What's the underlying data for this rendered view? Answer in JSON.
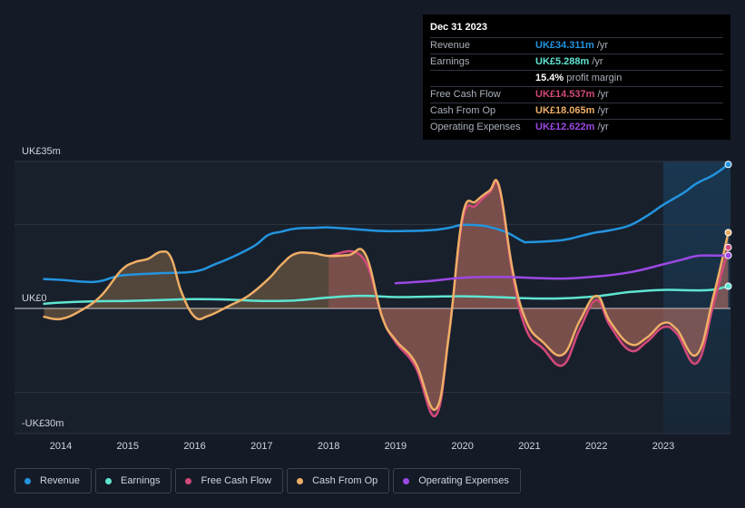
{
  "chart_data": {
    "type": "line",
    "title": "",
    "y_unit_label_top": "UK£35m",
    "y_unit_label_zero": "UK£0",
    "y_unit_label_bottom": "-UK£30m",
    "ylim": [
      -30,
      35
    ],
    "xlim": [
      2013.7,
      2023.97
    ],
    "x_ticks": [
      "2014",
      "2015",
      "2016",
      "2017",
      "2018",
      "2019",
      "2020",
      "2021",
      "2022",
      "2023"
    ],
    "highlight_start": 2023.0,
    "series": [
      {
        "name": "Revenue",
        "color": "#2394df",
        "fill": false,
        "points": [
          [
            2013.75,
            7.0
          ],
          [
            2014.0,
            6.8
          ],
          [
            2014.5,
            6.3
          ],
          [
            2014.8,
            7.5
          ],
          [
            2015.0,
            8.0
          ],
          [
            2015.5,
            8.4
          ],
          [
            2016.0,
            8.8
          ],
          [
            2016.3,
            10.5
          ],
          [
            2016.6,
            12.5
          ],
          [
            2016.9,
            15.0
          ],
          [
            2017.1,
            17.5
          ],
          [
            2017.3,
            18.3
          ],
          [
            2017.5,
            19.0
          ],
          [
            2017.8,
            19.2
          ],
          [
            2018.0,
            19.3
          ],
          [
            2018.3,
            19.0
          ],
          [
            2018.7,
            18.5
          ],
          [
            2019.0,
            18.4
          ],
          [
            2019.5,
            18.6
          ],
          [
            2019.8,
            19.2
          ],
          [
            2020.0,
            19.9
          ],
          [
            2020.3,
            19.7
          ],
          [
            2020.5,
            19.0
          ],
          [
            2020.7,
            17.8
          ],
          [
            2020.9,
            16.0
          ],
          [
            2021.0,
            15.8
          ],
          [
            2021.5,
            16.3
          ],
          [
            2021.8,
            17.4
          ],
          [
            2022.0,
            18.1
          ],
          [
            2022.2,
            18.6
          ],
          [
            2022.5,
            19.8
          ],
          [
            2022.8,
            22.5
          ],
          [
            2023.0,
            24.7
          ],
          [
            2023.3,
            27.5
          ],
          [
            2023.5,
            29.8
          ],
          [
            2023.75,
            31.8
          ],
          [
            2023.97,
            34.3
          ]
        ]
      },
      {
        "name": "Earnings",
        "color": "#5ee5d2",
        "fill": false,
        "points": [
          [
            2013.75,
            1.1
          ],
          [
            2014.0,
            1.4
          ],
          [
            2014.5,
            1.7
          ],
          [
            2015.0,
            1.8
          ],
          [
            2015.5,
            2.0
          ],
          [
            2016.0,
            2.2
          ],
          [
            2016.5,
            2.1
          ],
          [
            2017.0,
            1.8
          ],
          [
            2017.5,
            1.9
          ],
          [
            2018.0,
            2.6
          ],
          [
            2018.5,
            3.0
          ],
          [
            2019.0,
            2.7
          ],
          [
            2019.5,
            2.8
          ],
          [
            2020.0,
            2.9
          ],
          [
            2020.5,
            2.7
          ],
          [
            2021.0,
            2.4
          ],
          [
            2021.5,
            2.4
          ],
          [
            2022.0,
            2.9
          ],
          [
            2022.5,
            3.9
          ],
          [
            2023.0,
            4.4
          ],
          [
            2023.5,
            4.3
          ],
          [
            2023.75,
            4.5
          ],
          [
            2023.97,
            5.288
          ]
        ]
      },
      {
        "name": "Free Cash Flow",
        "color": "#d2497a",
        "fill": true,
        "points": [
          [
            2018.0,
            12.5
          ],
          [
            2018.5,
            12.3
          ],
          [
            2018.8,
            -2.0
          ],
          [
            2019.0,
            -8.0
          ],
          [
            2019.3,
            -14.0
          ],
          [
            2019.6,
            -25.5
          ],
          [
            2019.8,
            -6.0
          ],
          [
            2020.0,
            21.0
          ],
          [
            2020.2,
            24.5
          ],
          [
            2020.4,
            27.5
          ],
          [
            2020.55,
            28.5
          ],
          [
            2020.75,
            8.0
          ],
          [
            2020.95,
            -5.0
          ],
          [
            2021.2,
            -9.5
          ],
          [
            2021.5,
            -13.5
          ],
          [
            2021.75,
            -5.0
          ],
          [
            2022.0,
            2.0
          ],
          [
            2022.2,
            -4.0
          ],
          [
            2022.5,
            -10.0
          ],
          [
            2022.75,
            -8.0
          ],
          [
            2023.0,
            -4.5
          ],
          [
            2023.2,
            -6.0
          ],
          [
            2023.5,
            -13.0
          ],
          [
            2023.75,
            1.0
          ],
          [
            2023.97,
            14.537
          ]
        ]
      },
      {
        "name": "Cash From Op",
        "color": "#eeae66",
        "fill": true,
        "points": [
          [
            2013.75,
            -2.0
          ],
          [
            2014.0,
            -2.5
          ],
          [
            2014.3,
            -0.5
          ],
          [
            2014.6,
            3.0
          ],
          [
            2014.9,
            9.0
          ],
          [
            2015.1,
            11.0
          ],
          [
            2015.3,
            11.8
          ],
          [
            2015.5,
            13.5
          ],
          [
            2015.65,
            12.0
          ],
          [
            2015.8,
            4.0
          ],
          [
            2016.0,
            -2.0
          ],
          [
            2016.2,
            -1.8
          ],
          [
            2016.5,
            0.5
          ],
          [
            2016.8,
            3.0
          ],
          [
            2017.1,
            7.0
          ],
          [
            2017.3,
            10.5
          ],
          [
            2017.5,
            13.0
          ],
          [
            2017.75,
            13.2
          ],
          [
            2018.0,
            12.5
          ],
          [
            2018.3,
            12.7
          ],
          [
            2018.55,
            12.9
          ],
          [
            2018.8,
            -2.0
          ],
          [
            2019.0,
            -7.5
          ],
          [
            2019.3,
            -13.0
          ],
          [
            2019.6,
            -24.0
          ],
          [
            2019.8,
            -6.0
          ],
          [
            2020.0,
            22.0
          ],
          [
            2020.2,
            25.5
          ],
          [
            2020.4,
            28.0
          ],
          [
            2020.55,
            29.0
          ],
          [
            2020.75,
            9.0
          ],
          [
            2020.95,
            -3.0
          ],
          [
            2021.2,
            -8.0
          ],
          [
            2021.5,
            -11.0
          ],
          [
            2021.75,
            -3.0
          ],
          [
            2022.0,
            3.0
          ],
          [
            2022.2,
            -3.0
          ],
          [
            2022.5,
            -8.5
          ],
          [
            2022.75,
            -7.0
          ],
          [
            2023.0,
            -3.5
          ],
          [
            2023.2,
            -5.0
          ],
          [
            2023.5,
            -11.0
          ],
          [
            2023.75,
            3.0
          ],
          [
            2023.97,
            18.065
          ]
        ]
      },
      {
        "name": "Operating Expenses",
        "color": "#9b48e3",
        "fill": false,
        "points": [
          [
            2019.0,
            6.0
          ],
          [
            2019.5,
            6.5
          ],
          [
            2020.0,
            7.3
          ],
          [
            2020.5,
            7.5
          ],
          [
            2021.0,
            7.3
          ],
          [
            2021.5,
            7.1
          ],
          [
            2022.0,
            7.6
          ],
          [
            2022.5,
            8.6
          ],
          [
            2023.0,
            10.5
          ],
          [
            2023.3,
            11.7
          ],
          [
            2023.5,
            12.5
          ],
          [
            2023.75,
            12.6
          ],
          [
            2023.97,
            12.622
          ]
        ]
      }
    ]
  },
  "tooltip": {
    "date": "Dec 31 2023",
    "rows": [
      {
        "label": "Revenue",
        "value": "UK£34.311m",
        "unit": "/yr",
        "color": "#2394df"
      },
      {
        "label": "Earnings",
        "value": "UK£5.288m",
        "unit": "/yr",
        "color": "#5ee5d2"
      },
      {
        "label": "",
        "value": "15.4%",
        "unit": "profit margin",
        "color": "#ffffff"
      },
      {
        "label": "Free Cash Flow",
        "value": "UK£14.537m",
        "unit": "/yr",
        "color": "#d2497a"
      },
      {
        "label": "Cash From Op",
        "value": "UK£18.065m",
        "unit": "/yr",
        "color": "#eeae66"
      },
      {
        "label": "Operating Expenses",
        "value": "UK£12.622m",
        "unit": "/yr",
        "color": "#9b48e3"
      }
    ]
  },
  "legend": [
    {
      "label": "Revenue",
      "color": "#2394df"
    },
    {
      "label": "Earnings",
      "color": "#5ee5d2"
    },
    {
      "label": "Free Cash Flow",
      "color": "#d2497a"
    },
    {
      "label": "Cash From Op",
      "color": "#eeae66"
    },
    {
      "label": "Operating Expenses",
      "color": "#9b48e3"
    }
  ]
}
